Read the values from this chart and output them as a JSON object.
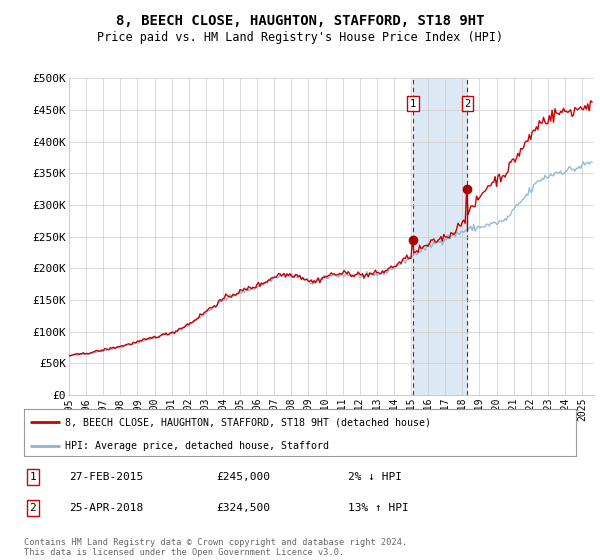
{
  "title": "8, BEECH CLOSE, HAUGHTON, STAFFORD, ST18 9HT",
  "subtitle": "Price paid vs. HM Land Registry's House Price Index (HPI)",
  "ylabel_ticks": [
    "£0",
    "£50K",
    "£100K",
    "£150K",
    "£200K",
    "£250K",
    "£300K",
    "£350K",
    "£400K",
    "£450K",
    "£500K"
  ],
  "ytick_values": [
    0,
    50000,
    100000,
    150000,
    200000,
    250000,
    300000,
    350000,
    400000,
    450000,
    500000
  ],
  "ylim": [
    0,
    500000
  ],
  "xlim_start": 1995.0,
  "xlim_end": 2025.7,
  "xtick_years": [
    1995,
    1996,
    1997,
    1998,
    1999,
    2000,
    2001,
    2002,
    2003,
    2004,
    2005,
    2006,
    2007,
    2008,
    2009,
    2010,
    2011,
    2012,
    2013,
    2014,
    2015,
    2016,
    2017,
    2018,
    2019,
    2020,
    2021,
    2022,
    2023,
    2024,
    2025
  ],
  "hpi_color": "#8ab4d4",
  "price_color": "#cc0000",
  "marker_color": "#aa0000",
  "sale1_x": 2015.12,
  "sale1_y": 245000,
  "sale2_x": 2018.29,
  "sale2_y": 324500,
  "shading_color": "#dce9f5",
  "vline_color": "#cc0000",
  "legend1_text": "8, BEECH CLOSE, HAUGHTON, STAFFORD, ST18 9HT (detached house)",
  "legend2_text": "HPI: Average price, detached house, Stafford",
  "table_entries": [
    {
      "num": "1",
      "date": "27-FEB-2015",
      "price": "£245,000",
      "pct": "2% ↓ HPI"
    },
    {
      "num": "2",
      "date": "25-APR-2018",
      "price": "£324,500",
      "pct": "13% ↑ HPI"
    }
  ],
  "footnote": "Contains HM Land Registry data © Crown copyright and database right 2024.\nThis data is licensed under the Open Government Licence v3.0.",
  "bg_color": "#ffffff",
  "grid_color": "#cccccc"
}
